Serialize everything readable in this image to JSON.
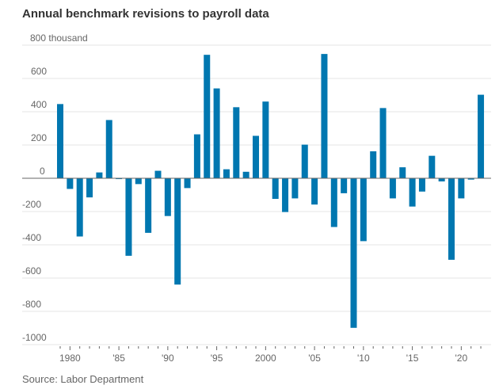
{
  "chart_data": {
    "type": "bar",
    "title": "Annual benchmark revisions to payroll data",
    "source": "Source: Labor Department",
    "ylabel": "",
    "xlabel": "",
    "y_unit_label": "800 thousand",
    "ylim": [
      -1000,
      800
    ],
    "yticks": [
      800,
      600,
      400,
      200,
      0,
      -200,
      -400,
      -600,
      -800,
      -1000
    ],
    "ytick_labels": [
      "800 thousand",
      "600",
      "400",
      "200",
      "0",
      "-200",
      "-400",
      "-600",
      "-800",
      "-1000"
    ],
    "xtick_years": [
      1980,
      1985,
      1990,
      1995,
      2000,
      2005,
      2010,
      2015,
      2020
    ],
    "xtick_labels": [
      "1980",
      "'85",
      "'90",
      "'95",
      "2000",
      "'05",
      "'10",
      "'15",
      "'20"
    ],
    "grid": true,
    "color": "#0077b0",
    "categories": [
      1979,
      1980,
      1981,
      1982,
      1983,
      1984,
      1985,
      1986,
      1987,
      1988,
      1989,
      1990,
      1991,
      1992,
      1993,
      1994,
      1995,
      1996,
      1997,
      1998,
      1999,
      2000,
      2001,
      2002,
      2003,
      2004,
      2005,
      2006,
      2007,
      2008,
      2009,
      2010,
      2011,
      2012,
      2013,
      2014,
      2015,
      2016,
      2017,
      2018,
      2019,
      2020,
      2021,
      2022
    ],
    "values": [
      446,
      -64,
      -350,
      -115,
      35,
      350,
      -5,
      -466,
      -35,
      -328,
      45,
      -227,
      -639,
      -59,
      264,
      742,
      540,
      54,
      427,
      39,
      255,
      461,
      -124,
      -203,
      -121,
      202,
      -158,
      747,
      -293,
      -90,
      -899,
      -378,
      162,
      422,
      -121,
      66,
      -170,
      -80,
      135,
      -19,
      -490,
      -121,
      -8,
      502
    ]
  }
}
